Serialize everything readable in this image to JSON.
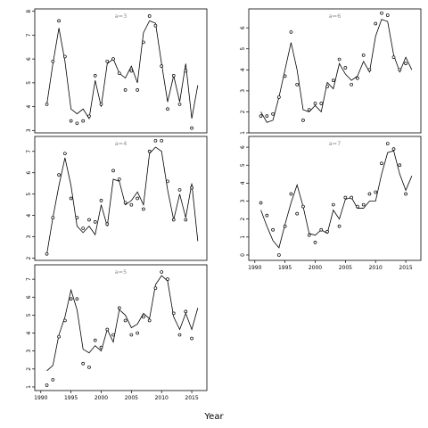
{
  "chart_data": {
    "type": "line",
    "xlabel": "Year",
    "panels": [
      {
        "id": "a3",
        "title": "a=3",
        "xlim": [
          1989,
          2017.5
        ],
        "ylim": [
          2.9,
          8.1
        ],
        "yticks": [
          3,
          4,
          5,
          6,
          7,
          8
        ],
        "xticks": [],
        "years": [
          1991,
          1992,
          1993,
          1994,
          1995,
          1996,
          1997,
          1998,
          1999,
          2000,
          2001,
          2002,
          2003,
          2004,
          2005,
          2006,
          2007,
          2008,
          2009,
          2010,
          2011,
          2012,
          2013,
          2014,
          2015,
          2016
        ],
        "points": [
          4.1,
          5.9,
          7.6,
          6.1,
          3.4,
          3.3,
          3.4,
          3.6,
          5.3,
          4.1,
          5.9,
          6.0,
          5.4,
          4.7,
          5.5,
          4.7,
          6.7,
          7.8,
          7.4,
          5.7,
          3.9,
          5.3,
          4.1,
          5.5,
          3.1,
          null
        ],
        "fit": [
          4.1,
          5.8,
          7.3,
          5.9,
          3.9,
          3.7,
          3.9,
          3.5,
          5.1,
          4.0,
          5.8,
          6.0,
          5.4,
          5.2,
          5.7,
          5.0,
          7.1,
          7.6,
          7.5,
          5.8,
          4.2,
          5.3,
          4.2,
          5.8,
          3.5,
          4.9
        ]
      },
      {
        "id": "a6",
        "title": "a=6",
        "xlim": [
          1989,
          2017.5
        ],
        "ylim": [
          1.0,
          6.9
        ],
        "yticks": [
          1,
          2,
          3,
          4,
          5,
          6
        ],
        "xticks": [],
        "years": [
          1991,
          1992,
          1993,
          1994,
          1995,
          1996,
          1997,
          1998,
          1999,
          2000,
          2001,
          2002,
          2003,
          2004,
          2005,
          2006,
          2007,
          2008,
          2009,
          2010,
          2011,
          2012,
          2013,
          2014,
          2015,
          2016
        ],
        "points": [
          1.8,
          1.8,
          1.9,
          2.7,
          3.7,
          5.8,
          3.3,
          1.6,
          2.1,
          2.4,
          2.4,
          3.2,
          3.5,
          4.5,
          4.1,
          3.3,
          3.6,
          4.7,
          4.0,
          6.2,
          6.7,
          6.6,
          4.6,
          4.0,
          4.3,
          null
        ],
        "fit": [
          2.0,
          1.5,
          1.6,
          2.7,
          4.0,
          5.3,
          4.0,
          2.1,
          2.0,
          2.3,
          2.0,
          3.4,
          3.1,
          4.3,
          3.8,
          3.5,
          3.7,
          4.4,
          3.9,
          5.6,
          6.4,
          6.3,
          4.7,
          3.9,
          4.6,
          4.0
        ]
      },
      {
        "id": "a4",
        "title": "a=4",
        "xlim": [
          1989,
          2017.5
        ],
        "ylim": [
          1.9,
          7.7
        ],
        "yticks": [
          2,
          3,
          4,
          5,
          6,
          7
        ],
        "xticks": [],
        "years": [
          1991,
          1992,
          1993,
          1994,
          1995,
          1996,
          1997,
          1998,
          1999,
          2000,
          2001,
          2002,
          2003,
          2004,
          2005,
          2006,
          2007,
          2008,
          2009,
          2010,
          2011,
          2012,
          2013,
          2014,
          2015,
          2016
        ],
        "points": [
          2.2,
          3.9,
          5.9,
          6.9,
          4.8,
          3.9,
          3.4,
          3.8,
          3.7,
          4.7,
          3.6,
          6.1,
          5.7,
          4.6,
          4.5,
          4.8,
          4.3,
          7.0,
          7.5,
          7.5,
          5.6,
          3.8,
          5.2,
          3.8,
          5.3,
          null
        ],
        "fit": [
          2.2,
          3.9,
          5.4,
          6.7,
          5.4,
          3.5,
          3.2,
          3.5,
          3.1,
          4.5,
          3.5,
          5.7,
          5.6,
          4.5,
          4.7,
          5.1,
          4.5,
          6.9,
          7.2,
          7.0,
          5.2,
          3.8,
          5.0,
          3.9,
          5.5,
          2.8
        ]
      },
      {
        "id": "a7",
        "title": "a=7",
        "xlim": [
          1989,
          2017.5
        ],
        "ylim": [
          -0.3,
          6.6
        ],
        "yticks": [
          0,
          1,
          2,
          3,
          4,
          5,
          6
        ],
        "xticks": [
          1990,
          1995,
          2000,
          2005,
          2010,
          2015
        ],
        "years": [
          1991,
          1992,
          1993,
          1994,
          1995,
          1996,
          1997,
          1998,
          1999,
          2000,
          2001,
          2002,
          2003,
          2004,
          2005,
          2006,
          2007,
          2008,
          2009,
          2010,
          2011,
          2012,
          2013,
          2014,
          2015,
          2016
        ],
        "points": [
          2.9,
          2.2,
          1.4,
          0.0,
          1.6,
          3.4,
          2.3,
          2.7,
          1.1,
          0.7,
          1.4,
          1.3,
          2.8,
          1.6,
          3.2,
          3.2,
          2.7,
          2.8,
          3.4,
          3.5,
          5.1,
          6.2,
          5.9,
          5.0,
          3.4,
          null
        ],
        "fit": [
          2.5,
          1.6,
          0.8,
          0.4,
          1.7,
          2.9,
          3.9,
          2.7,
          1.2,
          1.1,
          1.4,
          1.2,
          2.5,
          2.0,
          3.1,
          3.2,
          2.6,
          2.6,
          3.0,
          3.0,
          4.5,
          5.7,
          5.8,
          4.5,
          3.6,
          4.4
        ]
      },
      {
        "id": "a5",
        "title": "a=5",
        "xlim": [
          1989,
          2017.5
        ],
        "ylim": [
          0.8,
          7.8
        ],
        "yticks": [
          1,
          2,
          3,
          4,
          5,
          6,
          7
        ],
        "xticks": [
          1990,
          1995,
          2000,
          2005,
          2010,
          2015
        ],
        "years": [
          1991,
          1992,
          1993,
          1994,
          1995,
          1996,
          1997,
          1998,
          1999,
          2000,
          2001,
          2002,
          2003,
          2004,
          2005,
          2006,
          2007,
          2008,
          2009,
          2010,
          2011,
          2012,
          2013,
          2014,
          2015,
          2016
        ],
        "points": [
          1.1,
          1.4,
          3.8,
          4.7,
          5.9,
          5.9,
          2.3,
          2.1,
          3.6,
          3.2,
          4.2,
          3.9,
          5.4,
          4.7,
          3.9,
          4.0,
          4.9,
          4.7,
          6.5,
          7.4,
          7.0,
          5.1,
          3.9,
          5.2,
          3.7,
          null
        ],
        "fit": [
          1.9,
          2.2,
          3.9,
          4.9,
          6.4,
          5.3,
          3.1,
          2.9,
          3.3,
          3.0,
          4.2,
          3.5,
          5.3,
          5.0,
          4.3,
          4.5,
          5.1,
          4.8,
          6.7,
          7.2,
          6.9,
          4.9,
          4.2,
          5.1,
          4.2,
          5.4
        ]
      }
    ]
  }
}
